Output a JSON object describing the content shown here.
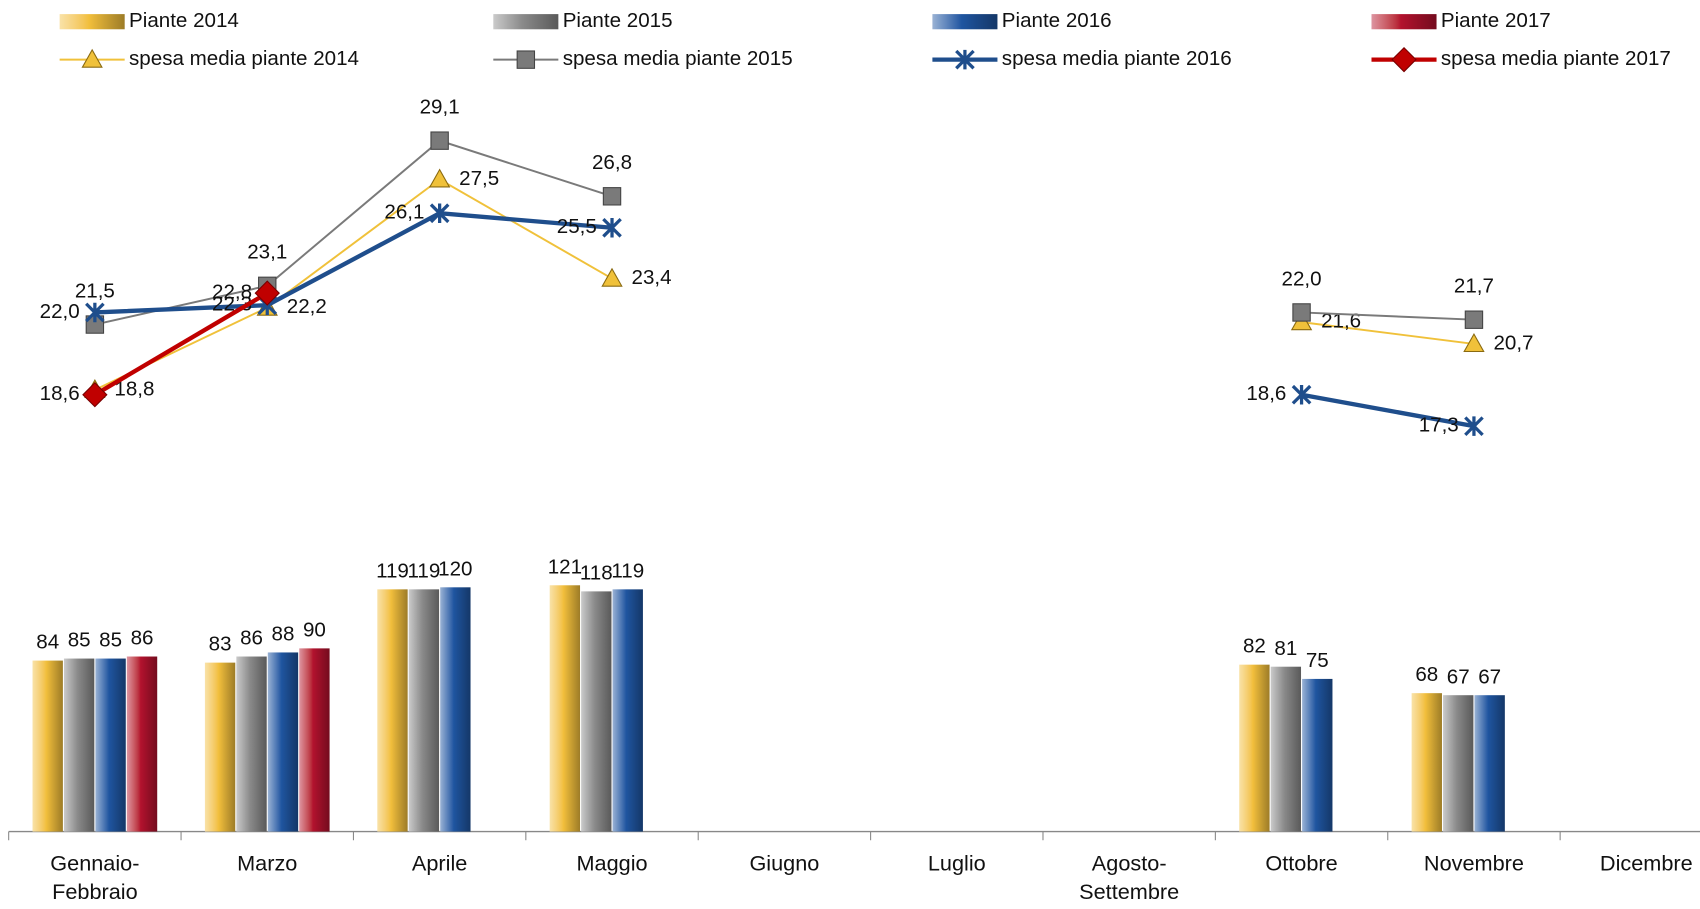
{
  "chart_data": {
    "type": "bar",
    "categories": [
      "Gennaio-Febbraio",
      "Marzo",
      "Aprile",
      "Maggio",
      "Giugno",
      "Luglio",
      "Agosto-Settembre",
      "Ottobre",
      "Novembre",
      "Dicembre"
    ],
    "ylim": [
      0,
      400
    ],
    "y2lim": [
      10,
      32
    ],
    "series": [
      {
        "name": "Piante 2014",
        "type": "bar",
        "color": "#f2bf3c",
        "values": [
          84,
          83,
          119,
          121,
          null,
          null,
          null,
          82,
          68,
          null
        ]
      },
      {
        "name": "Piante 2015",
        "type": "bar",
        "color": "#8a8a8a",
        "values": [
          85,
          86,
          119,
          118,
          null,
          null,
          null,
          81,
          67,
          null
        ]
      },
      {
        "name": "Piante 2016",
        "type": "bar",
        "color": "#1f55a0",
        "values": [
          85,
          88,
          120,
          119,
          null,
          null,
          null,
          75,
          67,
          null
        ]
      },
      {
        "name": "Piante 2017",
        "type": "bar",
        "color": "#b3122e",
        "values": [
          86,
          90,
          null,
          null,
          null,
          null,
          null,
          null,
          null,
          null
        ]
      },
      {
        "name": "spesa media piante 2014",
        "type": "line",
        "axis": "y2",
        "marker": "triangle",
        "color": "#f0c13a",
        "values": [
          18.8,
          22.2,
          27.5,
          23.4,
          null,
          null,
          null,
          21.6,
          20.7,
          null
        ],
        "value_labels": [
          "18,8",
          "22,2",
          "27,5",
          "23,4",
          null,
          null,
          null,
          "21,6",
          "20,7",
          null
        ]
      },
      {
        "name": "spesa media piante 2015",
        "type": "line",
        "axis": "y2",
        "marker": "square",
        "color": "#7a7a7a",
        "values": [
          21.5,
          23.1,
          29.1,
          26.8,
          null,
          null,
          null,
          22.0,
          21.7,
          null
        ],
        "value_labels": [
          "21,5",
          "23,1",
          "29,1",
          "26,8",
          null,
          null,
          null,
          "22,0",
          "21,7",
          null
        ]
      },
      {
        "name": "spesa media piante 2016",
        "type": "line",
        "axis": "y2",
        "marker": "star",
        "color": "#1f4e8c",
        "values": [
          22.0,
          22.3,
          26.1,
          25.5,
          null,
          null,
          null,
          18.6,
          17.3,
          null
        ],
        "value_labels": [
          "22,0",
          "22,3",
          "26,1",
          "25,5",
          null,
          null,
          null,
          "18,6",
          "17,3",
          null
        ]
      },
      {
        "name": "spesa media piante 2017",
        "type": "line",
        "axis": "y2",
        "marker": "diamond",
        "color": "#c00000",
        "values": [
          18.6,
          22.8,
          null,
          null,
          null,
          null,
          null,
          null,
          null,
          null
        ],
        "value_labels": [
          "18,6",
          "22,8",
          null,
          null,
          null,
          null,
          null,
          null,
          null,
          null
        ]
      }
    ]
  }
}
